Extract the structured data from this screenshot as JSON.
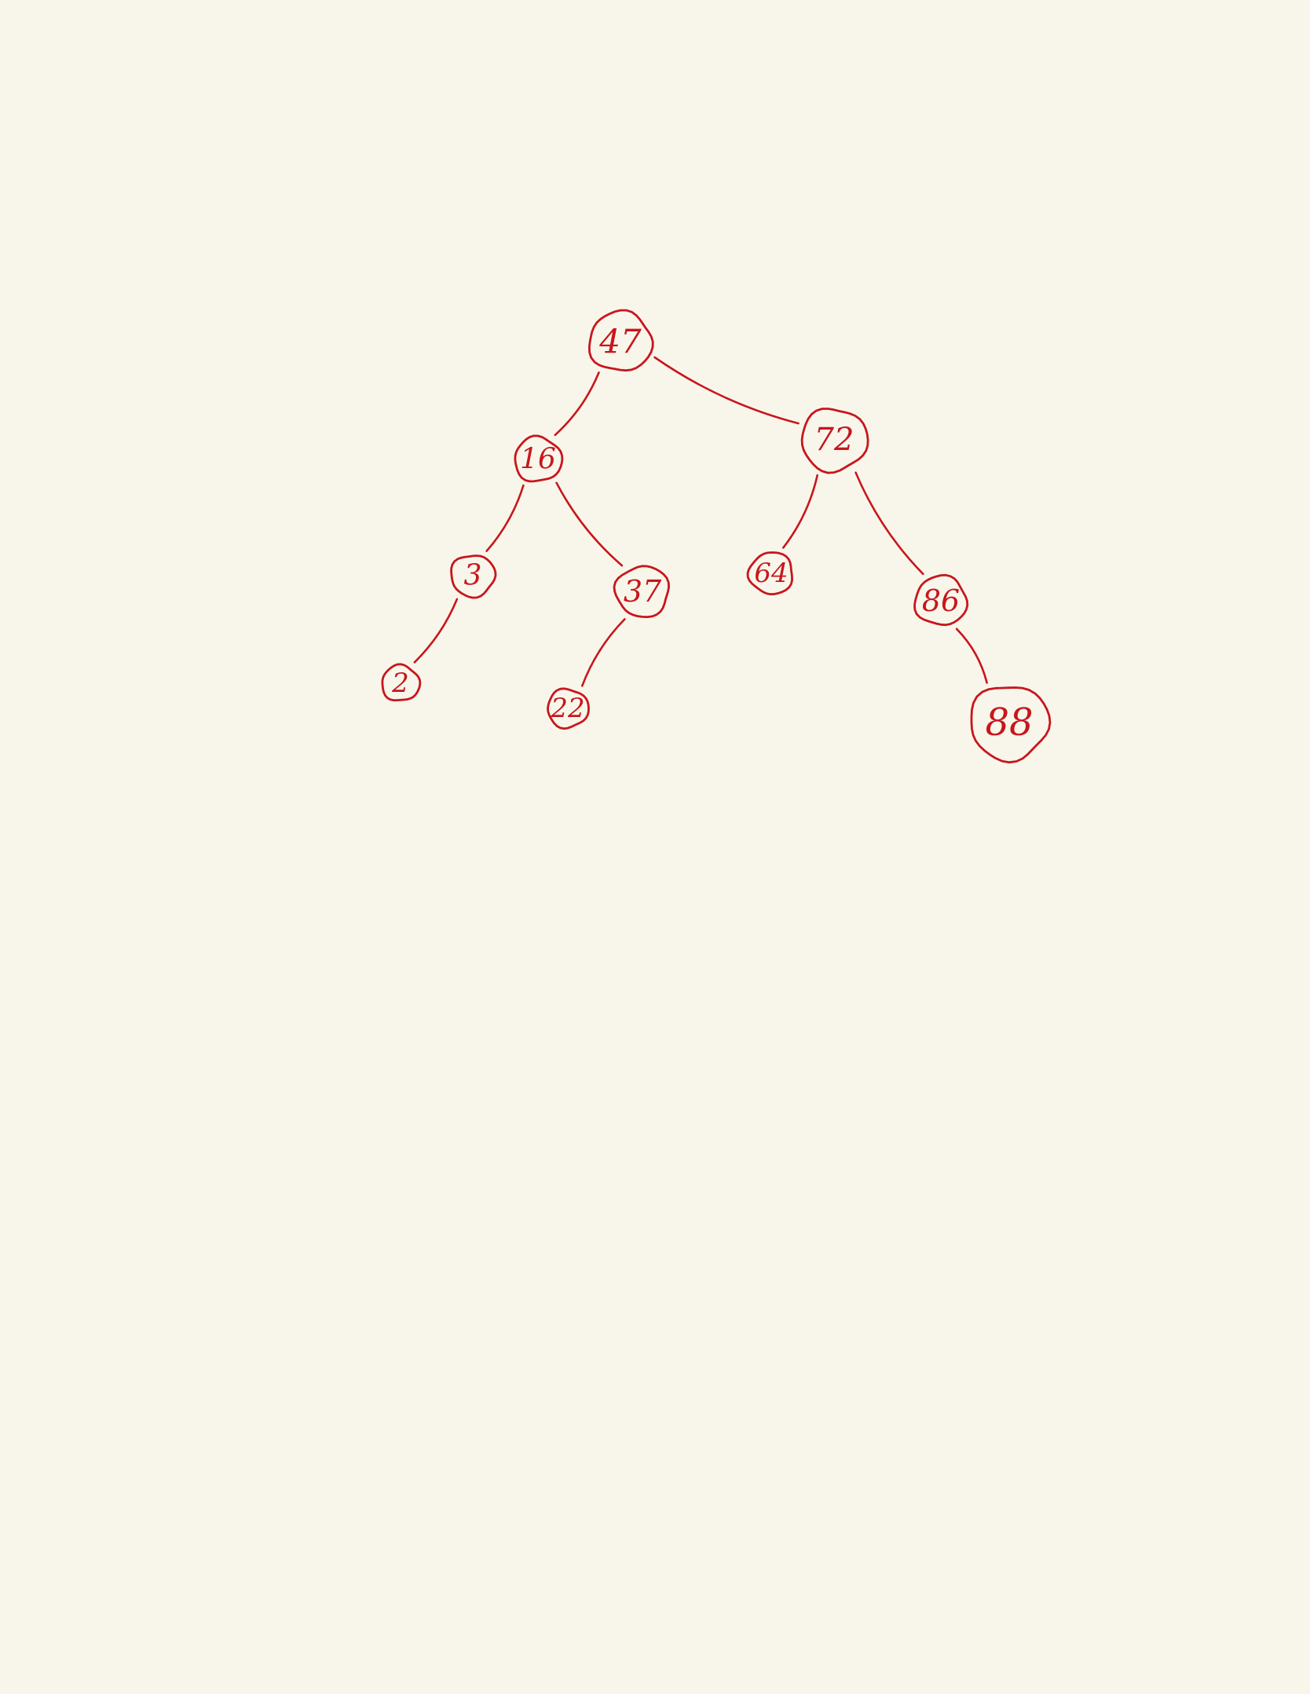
{
  "colors": {
    "background": "#f8f6ea",
    "ink": "#c8161d"
  },
  "tree": {
    "nodes": [
      {
        "id": "n47",
        "label": "47"
      },
      {
        "id": "n16",
        "label": "16"
      },
      {
        "id": "n72",
        "label": "72"
      },
      {
        "id": "n3",
        "label": "3"
      },
      {
        "id": "n37",
        "label": "37"
      },
      {
        "id": "n64",
        "label": "64"
      },
      {
        "id": "n86",
        "label": "86"
      },
      {
        "id": "n2",
        "label": "2"
      },
      {
        "id": "n22",
        "label": "22"
      },
      {
        "id": "n88",
        "label": "88"
      }
    ],
    "edges": [
      {
        "from": "n47",
        "to": "n16"
      },
      {
        "from": "n47",
        "to": "n72"
      },
      {
        "from": "n16",
        "to": "n3"
      },
      {
        "from": "n16",
        "to": "n37"
      },
      {
        "from": "n72",
        "to": "n64"
      },
      {
        "from": "n72",
        "to": "n86"
      },
      {
        "from": "n3",
        "to": "n2"
      },
      {
        "from": "n37",
        "to": "n22"
      },
      {
        "from": "n86",
        "to": "n88"
      }
    ]
  }
}
